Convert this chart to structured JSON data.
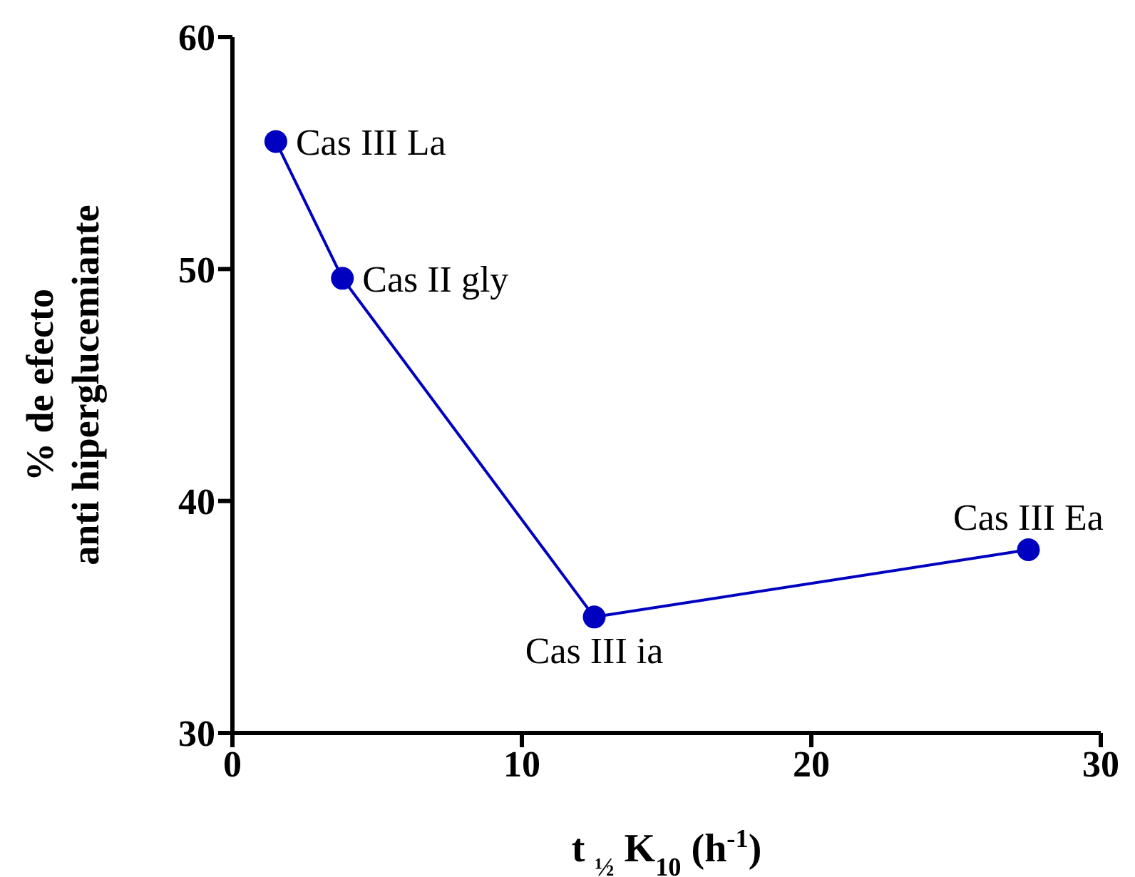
{
  "chart_data": {
    "type": "line",
    "xlabel": "t $_{½}$ K$_{10}$ (h$^{-1}$)",
    "ylabel": "% de efecto\nanti hiperglucemiante",
    "x": [
      1.5,
      3.8,
      12.5,
      27.5
    ],
    "series": [
      {
        "color": "#0000c0",
        "values": [
          55.5,
          49.6,
          35,
          37.9
        ]
      }
    ],
    "xlim": [
      0,
      30
    ],
    "xticks": [
      0,
      10,
      20,
      30
    ],
    "ylim": [
      30,
      60
    ],
    "yticks": [
      30,
      40,
      50,
      60
    ],
    "marker": "circle",
    "line_style": "solid",
    "annotations": [
      {
        "text": "Cas III La",
        "x": 1.5,
        "y": 55.5
      },
      {
        "text": "Cas II gly",
        "x": 3.8,
        "y": 49.6
      },
      {
        "text": "Cas III ia",
        "x": 12.5,
        "y": 35
      },
      {
        "text": "Cas III Ea",
        "x": 27.5,
        "y": 37.9
      }
    ]
  }
}
